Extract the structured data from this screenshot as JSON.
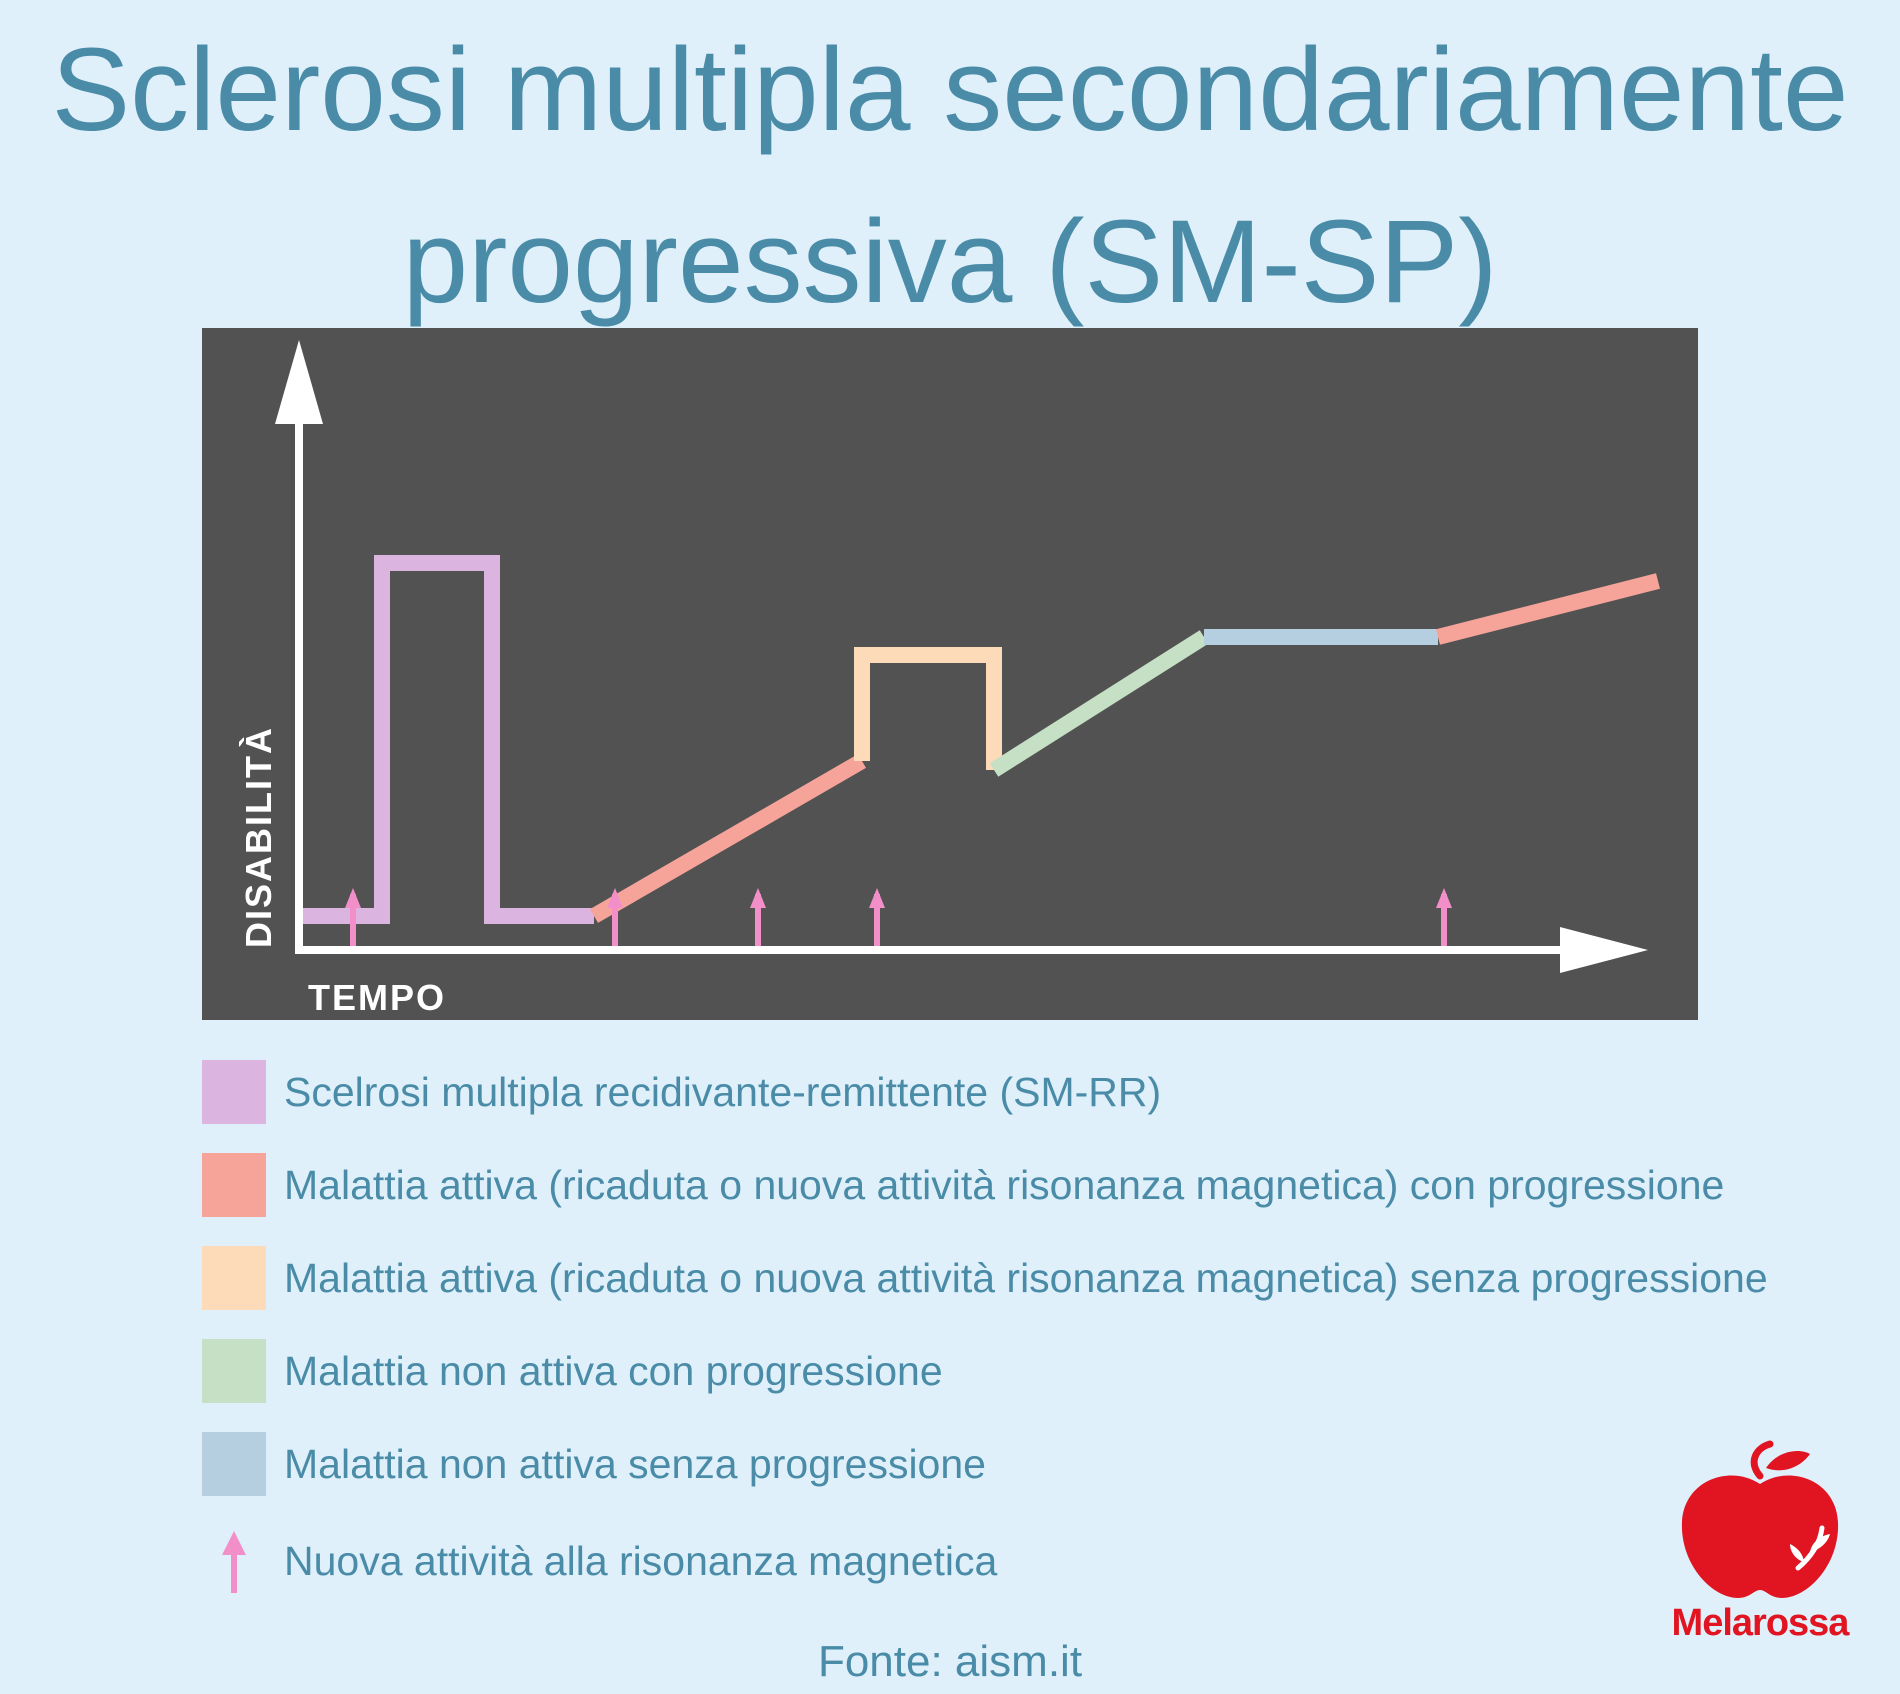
{
  "title": {
    "line1": "Sclerosi multipla secondariamente",
    "line2": "progressiva (SM-SP)"
  },
  "diagram": {
    "y_axis_label": "DISABILITÀ",
    "x_axis_label": "TEMPO",
    "background": "#525252",
    "axis_color": "#ffffff"
  },
  "legend": [
    {
      "label": "Scelrosi multipla recidivante-remittente (SM-RR)",
      "color": "#dcb4e0"
    },
    {
      "label": "Malattia attiva (ricaduta o nuova attività risonanza magnetica) con progressione",
      "color": "#f6a49a"
    },
    {
      "label": "Malattia attiva (ricaduta o nuova attività risonanza magnetica) senza progressione",
      "color": "#fddbb8"
    },
    {
      "label": "Malattia non attiva con progressione",
      "color": "#c5e0c4"
    },
    {
      "label": "Malattia non attiva senza progressione",
      "color": "#b6cfe0"
    },
    {
      "label": "Nuova attività alla risonanza magnetica",
      "color": "#f28fc9",
      "icon": "up-arrow-icon"
    }
  ],
  "source": "Fonte: aism.it",
  "logo": {
    "name": "Melarossa",
    "color": "#e11522"
  }
}
